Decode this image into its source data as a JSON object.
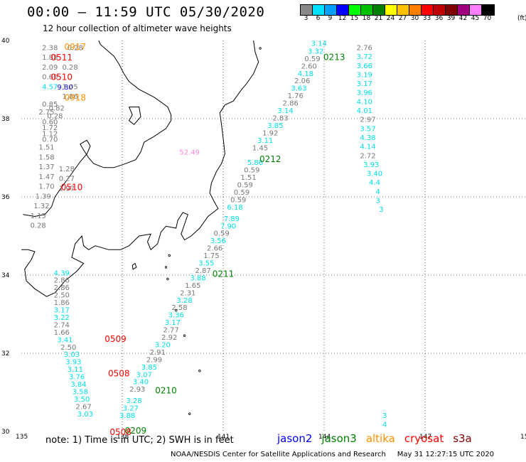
{
  "header": {
    "title": "00:00 – 11:59 UTC 05/30/2020",
    "subtitle": "12 hour collection of altimeter wave heights"
  },
  "colorbar": {
    "labels": [
      "3",
      "6",
      "9",
      "12",
      "15",
      "18",
      "21",
      "24",
      "27",
      "30",
      "33",
      "36",
      "39",
      "42",
      "45",
      "70"
    ],
    "colors": [
      "#888888",
      "#00e0ff",
      "#00a0ff",
      "#0000ff",
      "#00ff00",
      "#00c000",
      "#008000",
      "#ffff00",
      "#ffc000",
      "#ff8000",
      "#ff0000",
      "#c00000",
      "#800000",
      "#a00080",
      "#ff80ff",
      "#000000"
    ],
    "unit": "(ft)"
  },
  "axes": {
    "lat_labels": [
      "40",
      "38",
      "36",
      "34",
      "32",
      "30"
    ],
    "lon_labels": [
      "135",
      "138",
      "141",
      "144",
      "147",
      "150"
    ]
  },
  "colors": {
    "s": "#777777",
    "c": "#00e0e8",
    "b": "#0000ff",
    "p": "#ff88dd",
    "jason2": "#0000ff",
    "jason3": "#008000",
    "altika": "#ff9000",
    "cryosat": "#ff0000",
    "s3a": "#800000"
  },
  "footer": {
    "note": "note: 1) Time is in UTC; 2) SWH is in feet",
    "credit": "NOAA/NESDIS Center for Satellite Applications and Research     May 31 12:27:15 UTC 2020"
  },
  "legend": [
    {
      "name": "jason2",
      "color": "#0000ff"
    },
    {
      "name": "jason3",
      "color": "#008000"
    },
    {
      "name": "altika",
      "color": "#ff9000"
    },
    {
      "name": "cryosat",
      "color": "#ff0000"
    },
    {
      "name": "s3a",
      "color": "#800000"
    }
  ],
  "chart_data": {
    "type": "scatter",
    "title": "00:00 – 11:59 UTC 05/30/2020",
    "subtitle": "12 hour collection of altimeter wave heights",
    "xlim": [
      135,
      150
    ],
    "ylim": [
      30,
      40
    ],
    "x_ticks": [
      135,
      138,
      141,
      144,
      147,
      150
    ],
    "y_ticks": [
      30,
      32,
      34,
      36,
      38,
      40
    ],
    "grid": "dotted",
    "unit": "ft",
    "series": [
      {
        "name": "jason2",
        "color_key": "jason2",
        "points": [
          {
            "lon": 136.3,
            "lat": 38.8,
            "v": "9.80",
            "c": "b"
          }
        ]
      },
      {
        "name": "jason3",
        "color_key": "jason3",
        "labels": [
          {
            "lon": 144.3,
            "lat": 39.57,
            "t": "0213"
          },
          {
            "lon": 142.4,
            "lat": 36.96,
            "t": "0212"
          },
          {
            "lon": 141.0,
            "lat": 34.03,
            "t": "0211"
          },
          {
            "lon": 139.3,
            "lat": 31.05,
            "t": "0210"
          },
          {
            "lon": 138.4,
            "lat": 30.02,
            "t": "0209"
          }
        ],
        "points": [
          {
            "lon": 145.2,
            "lat": 39.81,
            "v": "2.76",
            "c": "s"
          },
          {
            "lon": 145.2,
            "lat": 39.58,
            "v": "3.72",
            "c": "c"
          },
          {
            "lon": 145.2,
            "lat": 39.35,
            "v": "3.66",
            "c": "c"
          },
          {
            "lon": 145.2,
            "lat": 39.12,
            "v": "3.19",
            "c": "c"
          },
          {
            "lon": 145.2,
            "lat": 38.89,
            "v": "3.17",
            "c": "c"
          },
          {
            "lon": 145.2,
            "lat": 38.66,
            "v": "3.96",
            "c": "c"
          },
          {
            "lon": 145.2,
            "lat": 38.43,
            "v": "4.10",
            "c": "c"
          },
          {
            "lon": 145.2,
            "lat": 38.2,
            "v": "4.01",
            "c": "c"
          },
          {
            "lon": 145.3,
            "lat": 37.97,
            "v": "2.97",
            "c": "s"
          },
          {
            "lon": 145.3,
            "lat": 37.74,
            "v": "3.57",
            "c": "c"
          },
          {
            "lon": 145.3,
            "lat": 37.51,
            "v": "4.38",
            "c": "c"
          },
          {
            "lon": 145.3,
            "lat": 37.28,
            "v": "4.14",
            "c": "c"
          },
          {
            "lon": 145.3,
            "lat": 37.05,
            "v": "2.72",
            "c": "s"
          },
          {
            "lon": 145.4,
            "lat": 36.82,
            "v": "3.93",
            "c": "c"
          },
          {
            "lon": 145.5,
            "lat": 36.59,
            "v": "3.40",
            "c": "c"
          },
          {
            "lon": 145.5,
            "lat": 36.36,
            "v": "4.4",
            "c": "c"
          },
          {
            "lon": 145.6,
            "lat": 36.13,
            "v": "4",
            "c": "c"
          },
          {
            "lon": 145.6,
            "lat": 35.9,
            "v": "3",
            "c": "c"
          },
          {
            "lon": 145.7,
            "lat": 35.67,
            "v": "3",
            "c": "c"
          },
          {
            "lon": 145.8,
            "lat": 30.4,
            "v": "3",
            "c": "c"
          },
          {
            "lon": 145.8,
            "lat": 30.17,
            "v": "4",
            "c": "c"
          }
        ]
      },
      {
        "name": "altika",
        "color_key": "altika",
        "labels": [
          {
            "lon": 136.6,
            "lat": 39.84,
            "t": "0917"
          },
          {
            "lon": 136.6,
            "lat": 38.54,
            "t": "0918"
          }
        ],
        "points": [
          {
            "lon": 135.85,
            "lat": 39.81,
            "v": "2.38",
            "c": "s"
          },
          {
            "lon": 136.6,
            "lat": 39.81,
            "v": "0.28",
            "c": "s"
          },
          {
            "lon": 135.85,
            "lat": 39.56,
            "v": "1.88",
            "c": "s"
          },
          {
            "lon": 135.85,
            "lat": 39.31,
            "v": "2.09",
            "c": "s"
          },
          {
            "lon": 136.45,
            "lat": 39.31,
            "v": "0.28",
            "c": "s"
          },
          {
            "lon": 135.85,
            "lat": 39.06,
            "v": "0.60",
            "c": "s"
          },
          {
            "lon": 135.85,
            "lat": 38.81,
            "v": "4.57",
            "c": "c"
          },
          {
            "lon": 136.45,
            "lat": 38.81,
            "v": "1.05",
            "c": "s"
          },
          {
            "lon": 136.45,
            "lat": 38.56,
            "v": "1.86",
            "c": "s"
          },
          {
            "lon": 135.85,
            "lat": 38.36,
            "v": "0.85",
            "c": "s"
          },
          {
            "lon": 136.05,
            "lat": 38.26,
            "v": "0.82",
            "c": "s"
          },
          {
            "lon": 135.75,
            "lat": 38.16,
            "v": "2.75",
            "c": "s"
          },
          {
            "lon": 136.0,
            "lat": 38.06,
            "v": "0.28",
            "c": "s"
          },
          {
            "lon": 135.85,
            "lat": 37.91,
            "v": "0.60",
            "c": "s"
          },
          {
            "lon": 135.85,
            "lat": 37.76,
            "v": "1.72",
            "c": "s"
          },
          {
            "lon": 135.85,
            "lat": 37.61,
            "v": "1.12",
            "c": "s"
          },
          {
            "lon": 135.85,
            "lat": 37.46,
            "v": "0.70",
            "c": "s"
          },
          {
            "lon": 135.75,
            "lat": 37.26,
            "v": "1.51",
            "c": "s"
          },
          {
            "lon": 135.75,
            "lat": 37.01,
            "v": "1.58",
            "c": "s"
          },
          {
            "lon": 135.75,
            "lat": 36.76,
            "v": "1.37",
            "c": "s"
          },
          {
            "lon": 136.35,
            "lat": 36.71,
            "v": "1.28",
            "c": "s"
          },
          {
            "lon": 135.75,
            "lat": 36.51,
            "v": "1.47",
            "c": "s"
          },
          {
            "lon": 136.35,
            "lat": 36.46,
            "v": "0.27",
            "c": "s"
          },
          {
            "lon": 135.75,
            "lat": 36.26,
            "v": "1.70",
            "c": "s"
          },
          {
            "lon": 136.35,
            "lat": 36.21,
            "v": "1.97",
            "c": "s"
          },
          {
            "lon": 135.65,
            "lat": 36.01,
            "v": "1.39",
            "c": "s"
          },
          {
            "lon": 135.6,
            "lat": 35.76,
            "v": "1.32",
            "c": "s"
          },
          {
            "lon": 135.5,
            "lat": 35.51,
            "v": "1.15",
            "c": "s"
          },
          {
            "lon": 135.5,
            "lat": 35.26,
            "v": "0.28",
            "c": "s"
          }
        ]
      },
      {
        "name": "cryosat",
        "color_key": "cryosat",
        "labels": [
          {
            "lon": 136.2,
            "lat": 39.56,
            "t": "0511"
          },
          {
            "lon": 136.2,
            "lat": 39.06,
            "t": "0510"
          },
          {
            "lon": 136.5,
            "lat": 36.25,
            "t": "0510"
          },
          {
            "lon": 137.8,
            "lat": 32.36,
            "t": "0509"
          },
          {
            "lon": 137.9,
            "lat": 31.48,
            "t": "0508"
          },
          {
            "lon": 137.95,
            "lat": 29.98,
            "t": "0508"
          }
        ],
        "points": [
          {
            "lon": 140.0,
            "lat": 37.14,
            "v": "52.49",
            "c": "p"
          }
        ]
      },
      {
        "name": "s3a",
        "color_key": "s3a",
        "points": [
          {
            "lon": 143.85,
            "lat": 39.92,
            "v": "3.14",
            "c": "c"
          },
          {
            "lon": 143.75,
            "lat": 39.72,
            "v": "3.32",
            "c": "c"
          },
          {
            "lon": 143.65,
            "lat": 39.53,
            "v": "0.59",
            "c": "s"
          },
          {
            "lon": 143.55,
            "lat": 39.34,
            "v": "2.60",
            "c": "s"
          },
          {
            "lon": 143.45,
            "lat": 39.15,
            "v": "4.18",
            "c": "c"
          },
          {
            "lon": 143.35,
            "lat": 38.96,
            "v": "2.06",
            "c": "s"
          },
          {
            "lon": 143.25,
            "lat": 38.77,
            "v": "3.63",
            "c": "c"
          },
          {
            "lon": 143.15,
            "lat": 38.58,
            "v": "1.76",
            "c": "s"
          },
          {
            "lon": 143.0,
            "lat": 38.39,
            "v": "2.86",
            "c": "s"
          },
          {
            "lon": 142.85,
            "lat": 38.2,
            "v": "3.14",
            "c": "c"
          },
          {
            "lon": 142.7,
            "lat": 38.01,
            "v": "2.83",
            "c": "s"
          },
          {
            "lon": 142.55,
            "lat": 37.82,
            "v": "3.85",
            "c": "c"
          },
          {
            "lon": 142.4,
            "lat": 37.63,
            "v": "1.92",
            "c": "s"
          },
          {
            "lon": 142.25,
            "lat": 37.44,
            "v": "3.11",
            "c": "c"
          },
          {
            "lon": 142.1,
            "lat": 37.25,
            "v": "1.45",
            "c": "s"
          },
          {
            "lon": 141.95,
            "lat": 36.87,
            "v": "5.86",
            "c": "c"
          },
          {
            "lon": 141.85,
            "lat": 36.68,
            "v": "0.59",
            "c": "s"
          },
          {
            "lon": 141.75,
            "lat": 36.49,
            "v": "1.51",
            "c": "s"
          },
          {
            "lon": 141.65,
            "lat": 36.3,
            "v": "0.59",
            "c": "s"
          },
          {
            "lon": 141.55,
            "lat": 36.11,
            "v": "0.59",
            "c": "s"
          },
          {
            "lon": 141.45,
            "lat": 35.92,
            "v": "0.59",
            "c": "s"
          },
          {
            "lon": 141.35,
            "lat": 35.73,
            "v": "6.18",
            "c": "c"
          },
          {
            "lon": 141.25,
            "lat": 35.44,
            "v": "7.89",
            "c": "c"
          },
          {
            "lon": 141.15,
            "lat": 35.25,
            "v": "7.90",
            "c": "c"
          },
          {
            "lon": 140.95,
            "lat": 35.06,
            "v": "0.59",
            "c": "s"
          },
          {
            "lon": 140.85,
            "lat": 34.87,
            "v": "3.56",
            "c": "c"
          },
          {
            "lon": 140.75,
            "lat": 34.68,
            "v": "2.66",
            "c": "s"
          },
          {
            "lon": 140.65,
            "lat": 34.49,
            "v": "1.75",
            "c": "s"
          },
          {
            "lon": 140.5,
            "lat": 34.3,
            "v": "3.55",
            "c": "c"
          },
          {
            "lon": 140.4,
            "lat": 34.11,
            "v": "2.87",
            "c": "s"
          },
          {
            "lon": 140.25,
            "lat": 33.92,
            "v": "3.88",
            "c": "c"
          },
          {
            "lon": 140.1,
            "lat": 33.73,
            "v": "1.65",
            "c": "s"
          },
          {
            "lon": 139.95,
            "lat": 33.54,
            "v": "2.31",
            "c": "s"
          },
          {
            "lon": 139.85,
            "lat": 33.35,
            "v": "3.28",
            "c": "c"
          },
          {
            "lon": 139.7,
            "lat": 33.16,
            "v": "2.58",
            "c": "s"
          },
          {
            "lon": 139.6,
            "lat": 32.97,
            "v": "3.36",
            "c": "c"
          },
          {
            "lon": 139.5,
            "lat": 32.78,
            "v": "3.17",
            "c": "c"
          },
          {
            "lon": 139.45,
            "lat": 32.59,
            "v": "2.77",
            "c": "s"
          },
          {
            "lon": 139.4,
            "lat": 32.4,
            "v": "2.92",
            "c": "s"
          },
          {
            "lon": 139.2,
            "lat": 32.21,
            "v": "3.20",
            "c": "c"
          },
          {
            "lon": 139.05,
            "lat": 32.02,
            "v": "2.91",
            "c": "s"
          },
          {
            "lon": 138.95,
            "lat": 31.83,
            "v": "2.99",
            "c": "s"
          },
          {
            "lon": 138.8,
            "lat": 31.64,
            "v": "3.85",
            "c": "c"
          },
          {
            "lon": 138.65,
            "lat": 31.45,
            "v": "3.07",
            "c": "c"
          },
          {
            "lon": 138.55,
            "lat": 31.26,
            "v": "3.40",
            "c": "c"
          },
          {
            "lon": 138.45,
            "lat": 31.07,
            "v": "2.93",
            "c": "s"
          },
          {
            "lon": 138.35,
            "lat": 30.78,
            "v": "3.28",
            "c": "c"
          },
          {
            "lon": 138.25,
            "lat": 30.59,
            "v": "3.27",
            "c": "c"
          },
          {
            "lon": 138.15,
            "lat": 30.4,
            "v": "3.88",
            "c": "c"
          },
          {
            "lon": 136.2,
            "lat": 34.05,
            "v": "4.39",
            "c": "c"
          },
          {
            "lon": 136.2,
            "lat": 33.86,
            "v": "2.86",
            "c": "s"
          },
          {
            "lon": 136.2,
            "lat": 33.67,
            "v": "2.86",
            "c": "s"
          },
          {
            "lon": 136.2,
            "lat": 33.48,
            "v": "2.50",
            "c": "s"
          },
          {
            "lon": 136.2,
            "lat": 33.29,
            "v": "1.86",
            "c": "s"
          },
          {
            "lon": 136.2,
            "lat": 33.1,
            "v": "3.17",
            "c": "c"
          },
          {
            "lon": 136.2,
            "lat": 32.91,
            "v": "3.22",
            "c": "c"
          },
          {
            "lon": 136.2,
            "lat": 32.72,
            "v": "2.74",
            "c": "s"
          },
          {
            "lon": 136.2,
            "lat": 32.53,
            "v": "1.66",
            "c": "s"
          },
          {
            "lon": 136.3,
            "lat": 32.34,
            "v": "3.41",
            "c": "c"
          },
          {
            "lon": 136.4,
            "lat": 32.15,
            "v": "2.50",
            "c": "s"
          },
          {
            "lon": 136.5,
            "lat": 31.96,
            "v": "3.03",
            "c": "c"
          },
          {
            "lon": 136.55,
            "lat": 31.77,
            "v": "3.93",
            "c": "c"
          },
          {
            "lon": 136.6,
            "lat": 31.58,
            "v": "3.11",
            "c": "c"
          },
          {
            "lon": 136.65,
            "lat": 31.39,
            "v": "3.76",
            "c": "c"
          },
          {
            "lon": 136.7,
            "lat": 31.2,
            "v": "3.84",
            "c": "c"
          },
          {
            "lon": 136.75,
            "lat": 31.01,
            "v": "3.58",
            "c": "c"
          },
          {
            "lon": 136.8,
            "lat": 30.82,
            "v": "3.50",
            "c": "c"
          },
          {
            "lon": 136.85,
            "lat": 30.63,
            "v": "2.67",
            "c": "s"
          },
          {
            "lon": 136.9,
            "lat": 30.44,
            "v": "3.03",
            "c": "c"
          }
        ]
      }
    ]
  }
}
